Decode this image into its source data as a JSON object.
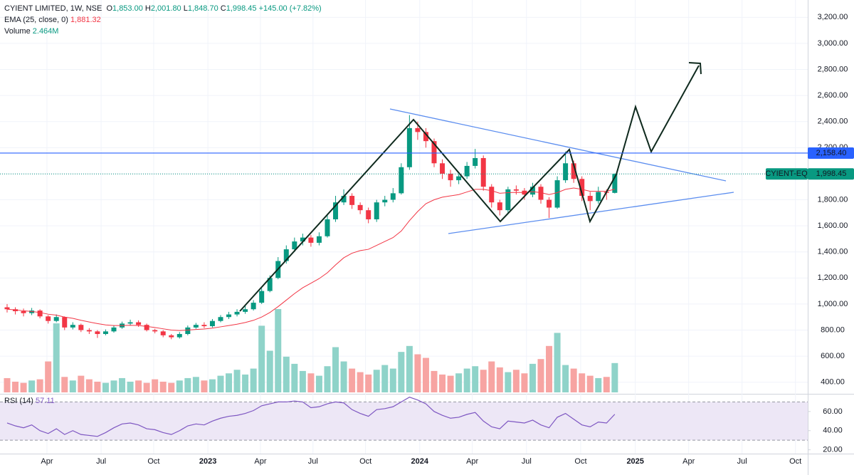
{
  "chart_data": [
    {
      "type": "candlestick",
      "legend": {
        "symbol": "CYIENT LIMITED, 1W, NSE",
        "ohlc": [
          {
            "key": "O",
            "value": 1853,
            "label": "1,853.00"
          },
          {
            "key": "H",
            "value": 2001.8,
            "label": "2,001.80"
          },
          {
            "key": "L",
            "value": 1848.7,
            "label": "1,848.70"
          },
          {
            "key": "C",
            "value": 1998.45,
            "label": "1,998.45"
          }
        ],
        "change": "+145.00 (+7.82%)"
      },
      "up_color": "#089981",
      "down_color": "#f23645",
      "volume_up_color": "#8fd3c9",
      "volume_down_color": "#f7a4a2",
      "x": [
        0,
        2,
        4,
        6,
        8,
        10,
        12,
        14,
        16,
        18,
        20,
        22,
        24,
        26,
        28,
        30,
        32,
        34,
        36,
        38,
        40,
        42,
        44,
        46,
        48,
        50,
        52,
        54,
        56,
        58,
        60,
        62,
        64,
        66,
        68,
        70,
        72,
        74,
        76,
        78,
        80,
        82,
        84,
        86,
        88,
        90,
        92,
        94,
        96,
        98,
        100,
        102,
        104,
        106,
        108,
        110,
        112,
        114,
        116,
        118,
        120,
        122,
        124,
        126,
        128,
        130,
        132,
        134,
        136,
        138,
        140,
        142,
        144,
        146,
        148
      ],
      "open": [
        975,
        960,
        945,
        930,
        950,
        905,
        870,
        900,
        820,
        840,
        800,
        790,
        770,
        790,
        820,
        850,
        860,
        840,
        800,
        790,
        760,
        745,
        770,
        820,
        840,
        830,
        870,
        900,
        920,
        940,
        960,
        1010,
        1100,
        1200,
        1330,
        1420,
        1480,
        1510,
        1470,
        1520,
        1650,
        1780,
        1830,
        1760,
        1720,
        1650,
        1780,
        1800,
        1850,
        2050,
        2350,
        2320,
        2250,
        2080,
        2000,
        1950,
        1980,
        2060,
        2120,
        1900,
        1780,
        1720,
        1880,
        1870,
        1840,
        1900,
        1800,
        1740,
        1950,
        2080,
        1960,
        1830,
        1790,
        1860,
        1853
      ],
      "high": [
        1000,
        975,
        965,
        970,
        960,
        915,
        920,
        905,
        860,
        850,
        815,
        800,
        805,
        835,
        865,
        880,
        875,
        850,
        810,
        800,
        770,
        785,
        835,
        855,
        860,
        885,
        915,
        940,
        960,
        985,
        1030,
        1120,
        1220,
        1360,
        1450,
        1510,
        1540,
        1530,
        1550,
        1680,
        1830,
        1880,
        1850,
        1780,
        1740,
        1800,
        1830,
        1890,
        2080,
        2450,
        2400,
        2350,
        2270,
        2110,
        2030,
        2010,
        2090,
        2190,
        2140,
        1920,
        1800,
        1900,
        1910,
        1890,
        1930,
        1920,
        1820,
        1980,
        2170,
        2100,
        1980,
        1860,
        1900,
        1880,
        2001.8
      ],
      "low": [
        935,
        920,
        905,
        915,
        890,
        850,
        860,
        800,
        805,
        785,
        770,
        740,
        760,
        780,
        810,
        835,
        825,
        790,
        775,
        745,
        730,
        735,
        760,
        810,
        815,
        820,
        860,
        885,
        905,
        925,
        950,
        1000,
        1090,
        1190,
        1310,
        1400,
        1450,
        1440,
        1450,
        1510,
        1630,
        1760,
        1730,
        1690,
        1620,
        1630,
        1750,
        1780,
        1840,
        2030,
        2260,
        2200,
        2050,
        1960,
        1900,
        1920,
        1960,
        2040,
        1870,
        1740,
        1680,
        1700,
        1840,
        1800,
        1820,
        1770,
        1660,
        1730,
        1930,
        1930,
        1790,
        1720,
        1770,
        1800,
        1848.7
      ],
      "close": [
        960,
        945,
        930,
        950,
        905,
        870,
        900,
        820,
        840,
        800,
        790,
        770,
        790,
        820,
        850,
        860,
        840,
        800,
        790,
        760,
        745,
        770,
        820,
        840,
        830,
        870,
        900,
        920,
        940,
        960,
        1010,
        1100,
        1200,
        1330,
        1420,
        1480,
        1510,
        1470,
        1520,
        1650,
        1780,
        1830,
        1760,
        1720,
        1650,
        1780,
        1800,
        1850,
        2050,
        2350,
        2320,
        2250,
        2080,
        2000,
        1950,
        1980,
        2060,
        2120,
        1900,
        1780,
        1720,
        1880,
        1870,
        1840,
        1900,
        1800,
        1740,
        1950,
        2080,
        1960,
        1830,
        1790,
        1860,
        1853,
        1998.45
      ],
      "ema": {
        "name": "EMA (25, close, 0)",
        "color": "#f23645",
        "value_label": "1,881.32",
        "values": [
          960,
          955,
          948,
          943,
          935,
          922,
          915,
          900,
          890,
          875,
          862,
          850,
          840,
          835,
          835,
          837,
          835,
          828,
          820,
          810,
          800,
          797,
          800,
          805,
          808,
          815,
          825,
          835,
          845,
          858,
          875,
          900,
          935,
          980,
          1030,
          1080,
          1125,
          1160,
          1195,
          1240,
          1300,
          1355,
          1390,
          1410,
          1420,
          1450,
          1480,
          1510,
          1560,
          1640,
          1710,
          1770,
          1800,
          1820,
          1830,
          1840,
          1860,
          1880,
          1880,
          1870,
          1850,
          1855,
          1857,
          1855,
          1862,
          1855,
          1840,
          1855,
          1880,
          1890,
          1880,
          1865,
          1865,
          1865,
          1881.32
        ]
      },
      "volume": {
        "name": "Volume",
        "value_label": "2.464M",
        "values": [
          1.2,
          0.9,
          0.8,
          1.0,
          1.1,
          2.6,
          5.8,
          1.3,
          1.0,
          1.4,
          1.1,
          0.9,
          0.8,
          1.0,
          1.2,
          0.9,
          1.0,
          0.8,
          1.1,
          0.9,
          0.8,
          1.0,
          1.2,
          1.3,
          1.0,
          1.1,
          1.4,
          1.6,
          1.9,
          1.5,
          2.0,
          5.6,
          3.5,
          7.0,
          3.0,
          2.4,
          1.8,
          1.6,
          1.4,
          2.2,
          3.8,
          2.6,
          2.0,
          1.7,
          1.5,
          1.9,
          2.3,
          2.0,
          3.4,
          3.9,
          3.2,
          2.9,
          1.8,
          1.5,
          1.4,
          1.6,
          2.0,
          2.2,
          1.9,
          2.6,
          2.1,
          1.7,
          1.9,
          1.6,
          2.4,
          2.8,
          3.9,
          5.0,
          2.3,
          2.0,
          1.6,
          1.4,
          1.2,
          1.3,
          2.464
        ]
      },
      "level": {
        "value": 2158.4,
        "label": "2,158.40",
        "color": "#2962ff"
      },
      "last": {
        "name": "CYIENT-EQ",
        "value": 1998.45,
        "label": "1,998.45"
      },
      "xlim": [
        -1.73,
        195
      ],
      "xticks": [
        {
          "value": 9.7,
          "label": "Apr"
        },
        {
          "value": 22.9,
          "label": "Jul"
        },
        {
          "value": 35.7,
          "label": "Oct"
        },
        {
          "value": 48.9,
          "label": "2023"
        },
        {
          "value": 61.7,
          "label": "Apr"
        },
        {
          "value": 74.5,
          "label": "Jul"
        },
        {
          "value": 87.3,
          "label": "Oct"
        },
        {
          "value": 100.5,
          "label": "2024"
        },
        {
          "value": 113.3,
          "label": "Apr"
        },
        {
          "value": 126.5,
          "label": "Jul"
        },
        {
          "value": 139.7,
          "label": "Oct"
        },
        {
          "value": 153,
          "label": "2025"
        },
        {
          "value": 166,
          "label": "Apr"
        },
        {
          "value": 179,
          "label": "Jul"
        },
        {
          "value": 192,
          "label": "Oct"
        }
      ],
      "ylim": [
        311,
        3333
      ],
      "yticks": [
        {
          "value": 400,
          "label": "400.00"
        },
        {
          "value": 600,
          "label": "600.00"
        },
        {
          "value": 800,
          "label": "800.00"
        },
        {
          "value": 1000,
          "label": "1,000.00"
        },
        {
          "value": 1200,
          "label": "1,200.00"
        },
        {
          "value": 1400,
          "label": "1,400.00"
        },
        {
          "value": 1600,
          "label": "1,600.00"
        },
        {
          "value": 1800,
          "label": "1,800.00"
        },
        {
          "value": 2000,
          "label": "2,000.00"
        },
        {
          "value": 2200,
          "label": "2,200.00"
        },
        {
          "value": 2400,
          "label": "2,400.00"
        },
        {
          "value": 2600,
          "label": "2,600.00"
        },
        {
          "value": 2800,
          "label": "2,800.00"
        },
        {
          "value": 3000,
          "label": "3,000.00"
        },
        {
          "value": 3200,
          "label": "3,200.00"
        }
      ]
    },
    {
      "type": "line",
      "title": "RSI (14)",
      "band": [
        30,
        70
      ],
      "band_color": "#ede7f6",
      "series": [
        {
          "name": "RSI",
          "color": "#7e57c2",
          "value_label": "57.11",
          "values": [
            48,
            45,
            43,
            46,
            40,
            37,
            42,
            36,
            40,
            36,
            35,
            34,
            38,
            43,
            47,
            48,
            46,
            42,
            41,
            38,
            36,
            40,
            45,
            47,
            46,
            50,
            53,
            55,
            56,
            58,
            61,
            66,
            68,
            70,
            70,
            71,
            70,
            64,
            65,
            68,
            70,
            69,
            62,
            58,
            55,
            62,
            63,
            65,
            70,
            75,
            72,
            68,
            60,
            56,
            53,
            54,
            57,
            59,
            50,
            44,
            42,
            50,
            49,
            48,
            51,
            46,
            43,
            54,
            58,
            52,
            46,
            44,
            49,
            48,
            57.11
          ]
        }
      ],
      "ylim": [
        16,
        77
      ],
      "yticks": [
        {
          "value": 20,
          "label": "20.00"
        },
        {
          "value": 40,
          "label": "40.00"
        },
        {
          "value": 60,
          "label": "60.00"
        }
      ]
    }
  ]
}
